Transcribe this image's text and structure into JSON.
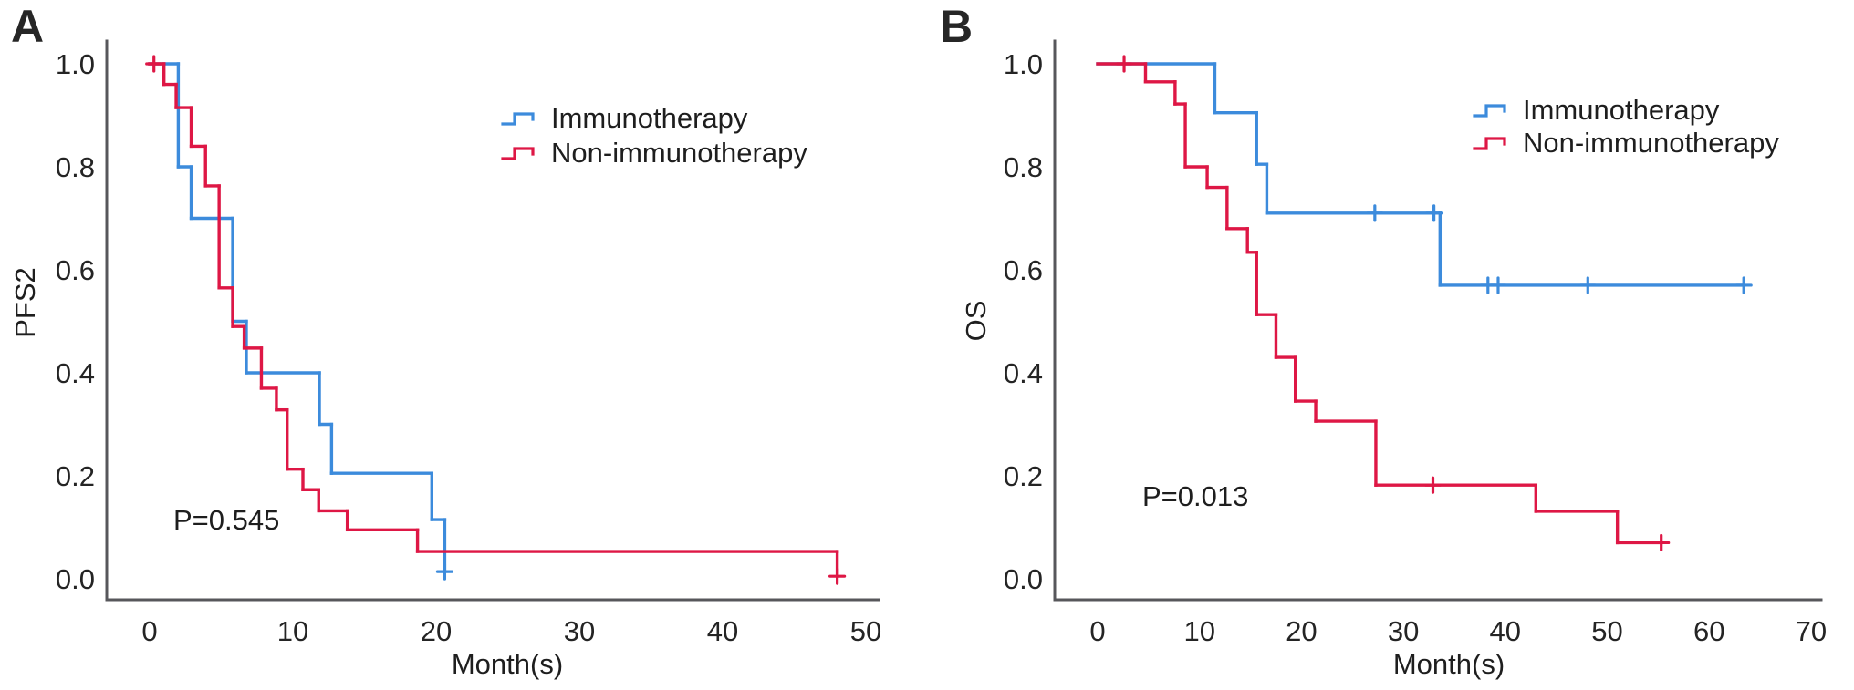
{
  "colors": {
    "immunotherapy": "#3C8BDC",
    "non_immunotherapy": "#DE1745",
    "axis": "#57575B",
    "text": "#1E1E1E"
  },
  "chart_data": [
    {
      "type": "line",
      "subtype": "kaplan-meier-step",
      "panel_letter": "A",
      "xlabel": "Month(s)",
      "ylabel": "PFS2",
      "p_value": "P=0.545",
      "x_ticks": [
        0,
        10,
        20,
        30,
        40,
        50
      ],
      "y_ticks": [
        "0.0",
        "0.2",
        "0.4",
        "0.6",
        "0.8",
        "1.0"
      ],
      "xlim": [
        -3,
        51
      ],
      "ylim": [
        0,
        1.04
      ],
      "grid": false,
      "legend_position": "upper-right-inside",
      "legend": [
        "Immunotherapy",
        "Non-immunotherapy"
      ],
      "series": [
        {
          "name": "Immunotherapy",
          "color_key": "immunotherapy",
          "points": [
            [
              0,
              1.0
            ],
            [
              2.0,
              0.8
            ],
            [
              2.9,
              0.7
            ],
            [
              5.8,
              0.5
            ],
            [
              6.75,
              0.4
            ],
            [
              11.85,
              0.3
            ],
            [
              12.7,
              0.205
            ],
            [
              19.7,
              0.115
            ],
            [
              20.6,
              0.014
            ]
          ],
          "end_time": 20.6,
          "censors": [
            [
              20.6,
              0.014
            ]
          ]
        },
        {
          "name": "Non-immunotherapy",
          "color_key": "non_immunotherapy",
          "points": [
            [
              0,
              1.0
            ],
            [
              1.0,
              0.96
            ],
            [
              1.85,
              0.915
            ],
            [
              2.9,
              0.84
            ],
            [
              3.9,
              0.763
            ],
            [
              4.85,
              0.565
            ],
            [
              5.8,
              0.49
            ],
            [
              6.6,
              0.448
            ],
            [
              7.8,
              0.37
            ],
            [
              8.85,
              0.328
            ],
            [
              9.6,
              0.213
            ],
            [
              10.7,
              0.173
            ],
            [
              11.8,
              0.132
            ],
            [
              13.8,
              0.095
            ],
            [
              18.7,
              0.053
            ],
            [
              48.0,
              0.005
            ]
          ],
          "end_time": 48.0,
          "censors": [
            [
              0.3,
              1.0
            ],
            [
              48.0,
              0.005
            ]
          ]
        }
      ]
    },
    {
      "type": "line",
      "subtype": "kaplan-meier-step",
      "panel_letter": "B",
      "xlabel": "Month(s)",
      "ylabel": "OS",
      "p_value": "P=0.013",
      "x_ticks": [
        0,
        10,
        20,
        30,
        40,
        50,
        60,
        70
      ],
      "y_ticks": [
        "0.0",
        "0.2",
        "0.4",
        "0.6",
        "0.8",
        "1.0"
      ],
      "xlim": [
        -4.2,
        71
      ],
      "ylim": [
        0,
        1.04
      ],
      "grid": false,
      "legend_position": "upper-right-inside",
      "legend": [
        "Immunotherapy",
        "Non-immunotherapy"
      ],
      "series": [
        {
          "name": "Immunotherapy",
          "color_key": "immunotherapy",
          "points": [
            [
              0,
              1.0
            ],
            [
              11.5,
              0.905
            ],
            [
              15.6,
              0.805
            ],
            [
              16.6,
              0.71
            ],
            [
              33.6,
              0.57
            ]
          ],
          "end_time": 63.4,
          "censors": [
            [
              27.2,
              0.71
            ],
            [
              33.0,
              0.71
            ],
            [
              38.3,
              0.57
            ],
            [
              39.3,
              0.57
            ],
            [
              48.1,
              0.57
            ],
            [
              63.4,
              0.57
            ]
          ]
        },
        {
          "name": "Non-immunotherapy",
          "color_key": "non_immunotherapy",
          "points": [
            [
              0,
              1.0
            ],
            [
              4.7,
              0.965
            ],
            [
              7.6,
              0.922
            ],
            [
              8.6,
              0.8
            ],
            [
              10.75,
              0.76
            ],
            [
              12.7,
              0.68
            ],
            [
              14.7,
              0.634
            ],
            [
              15.6,
              0.513
            ],
            [
              17.5,
              0.43
            ],
            [
              19.4,
              0.345
            ],
            [
              21.4,
              0.306
            ],
            [
              27.3,
              0.182
            ],
            [
              43.0,
              0.131
            ],
            [
              51.0,
              0.07
            ]
          ],
          "end_time": 55.3,
          "censors": [
            [
              2.6,
              1.0
            ],
            [
              32.9,
              0.182
            ],
            [
              55.3,
              0.07
            ]
          ]
        }
      ]
    }
  ]
}
